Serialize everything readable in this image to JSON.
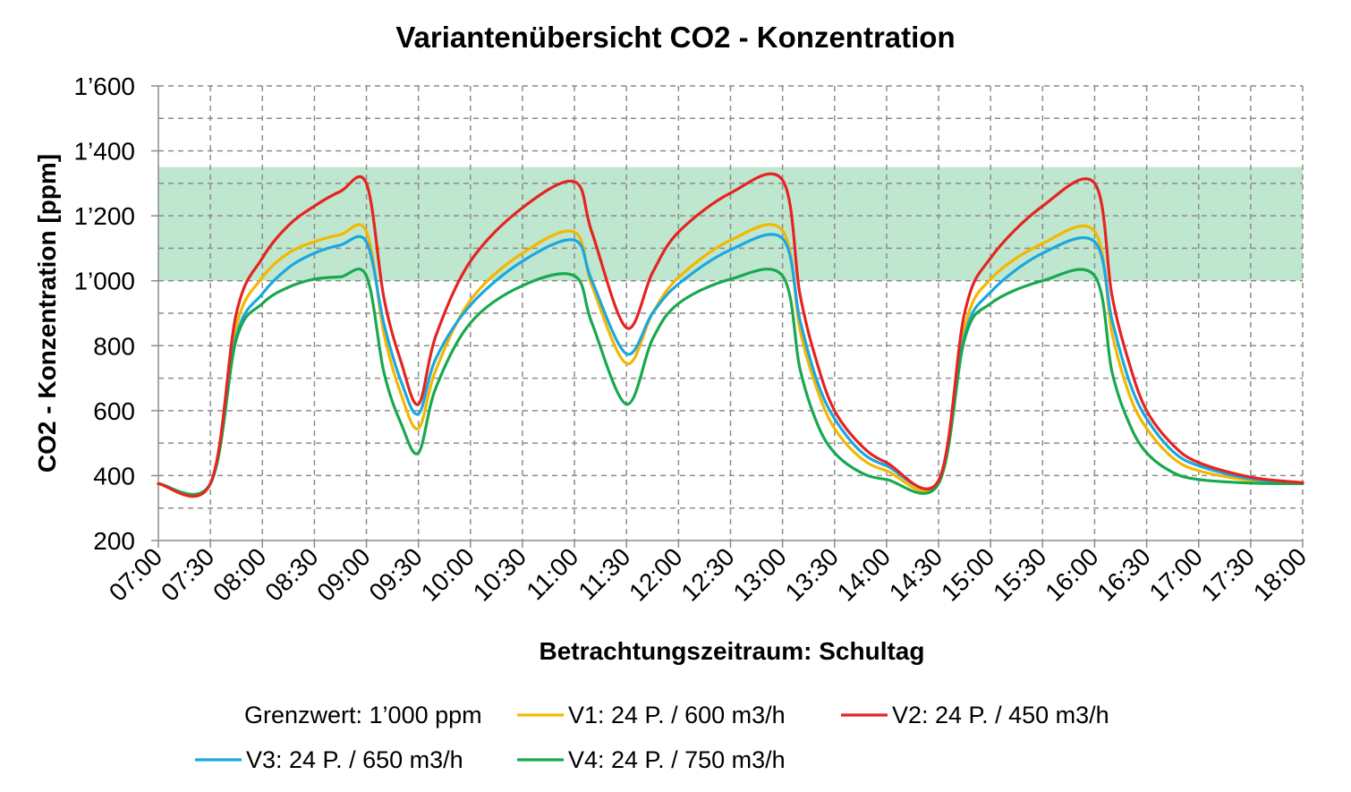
{
  "chart_data": {
    "type": "line",
    "title": "Variantenübersicht CO2 - Konzentration",
    "xlabel": "Betrachtungszeitraum: Schultag",
    "ylabel": "CO2 - Konzentration [ppm]",
    "ylim": [
      200,
      1600
    ],
    "y_ticks": [
      200,
      400,
      600,
      800,
      1000,
      1200,
      1400,
      1600
    ],
    "y_tick_labels": [
      "200",
      "400",
      "600",
      "800",
      "1’000",
      "1’200",
      "1’400",
      "1’600"
    ],
    "x_range": [
      "07:00",
      "18:00"
    ],
    "x_tick_labels": [
      "07:00",
      "07:30",
      "08:00",
      "08:30",
      "09:00",
      "09:30",
      "10:00",
      "10:30",
      "11:00",
      "11:30",
      "12:00",
      "12:30",
      "13:00",
      "13:30",
      "14:00",
      "14:30",
      "15:00",
      "15:30",
      "16:00",
      "16:30",
      "17:00",
      "17:30",
      "18:00"
    ],
    "grid": true,
    "band": {
      "name": "Grenzwert: 1’000 ppm",
      "from": 1000,
      "to": 1350,
      "color": "#bfe6cf"
    },
    "legend_position": "bottom",
    "series": [
      {
        "name": "V1: 24 P. / 600 m3/h",
        "color": "#f2b800",
        "points": [
          [
            "07:00",
            375
          ],
          [
            "07:30",
            375
          ],
          [
            "07:45",
            860
          ],
          [
            "08:00",
            1010
          ],
          [
            "08:15",
            1085
          ],
          [
            "08:30",
            1120
          ],
          [
            "08:45",
            1142
          ],
          [
            "09:00",
            1152
          ],
          [
            "09:10",
            840
          ],
          [
            "09:20",
            650
          ],
          [
            "09:30",
            545
          ],
          [
            "09:40",
            725
          ],
          [
            "10:00",
            940
          ],
          [
            "10:30",
            1085
          ],
          [
            "11:00",
            1150
          ],
          [
            "11:10",
            985
          ],
          [
            "11:30",
            745
          ],
          [
            "11:45",
            900
          ],
          [
            "12:00",
            1010
          ],
          [
            "12:30",
            1125
          ],
          [
            "13:00",
            1155
          ],
          [
            "13:10",
            850
          ],
          [
            "13:20",
            665
          ],
          [
            "13:30",
            545
          ],
          [
            "13:45",
            455
          ],
          [
            "14:00",
            415
          ],
          [
            "14:30",
            378
          ],
          [
            "14:45",
            855
          ],
          [
            "15:00",
            1005
          ],
          [
            "15:30",
            1115
          ],
          [
            "16:00",
            1152
          ],
          [
            "16:10",
            840
          ],
          [
            "16:20",
            650
          ],
          [
            "16:30",
            545
          ],
          [
            "16:45",
            455
          ],
          [
            "17:00",
            415
          ],
          [
            "17:30",
            385
          ],
          [
            "18:00",
            377
          ]
        ]
      },
      {
        "name": "V2: 24 P. / 450 m3/h",
        "color": "#e52421",
        "points": [
          [
            "07:00",
            375
          ],
          [
            "07:30",
            375
          ],
          [
            "07:45",
            900
          ],
          [
            "08:00",
            1070
          ],
          [
            "08:15",
            1170
          ],
          [
            "08:30",
            1230
          ],
          [
            "08:45",
            1275
          ],
          [
            "09:00",
            1300
          ],
          [
            "09:10",
            950
          ],
          [
            "09:20",
            750
          ],
          [
            "09:30",
            620
          ],
          [
            "09:40",
            830
          ],
          [
            "10:00",
            1060
          ],
          [
            "10:30",
            1225
          ],
          [
            "11:00",
            1305
          ],
          [
            "11:10",
            1150
          ],
          [
            "11:30",
            855
          ],
          [
            "11:45",
            1025
          ],
          [
            "12:00",
            1150
          ],
          [
            "12:30",
            1270
          ],
          [
            "13:00",
            1310
          ],
          [
            "13:10",
            960
          ],
          [
            "13:20",
            745
          ],
          [
            "13:30",
            600
          ],
          [
            "13:45",
            495
          ],
          [
            "14:00",
            440
          ],
          [
            "14:30",
            385
          ],
          [
            "14:45",
            900
          ],
          [
            "15:00",
            1070
          ],
          [
            "15:30",
            1230
          ],
          [
            "16:00",
            1300
          ],
          [
            "16:10",
            955
          ],
          [
            "16:20",
            745
          ],
          [
            "16:30",
            600
          ],
          [
            "16:45",
            495
          ],
          [
            "17:00",
            440
          ],
          [
            "17:30",
            395
          ],
          [
            "18:00",
            378
          ]
        ]
      },
      {
        "name": "V3: 24 P. / 650 m3/h",
        "color": "#1ba7e0",
        "points": [
          [
            "07:00",
            375
          ],
          [
            "07:30",
            375
          ],
          [
            "07:45",
            830
          ],
          [
            "08:00",
            960
          ],
          [
            "08:15",
            1040
          ],
          [
            "08:30",
            1085
          ],
          [
            "08:45",
            1110
          ],
          [
            "09:00",
            1120
          ],
          [
            "09:10",
            870
          ],
          [
            "09:20",
            690
          ],
          [
            "09:30",
            590
          ],
          [
            "09:40",
            760
          ],
          [
            "10:00",
            925
          ],
          [
            "10:30",
            1060
          ],
          [
            "11:00",
            1125
          ],
          [
            "11:10",
            1000
          ],
          [
            "11:30",
            775
          ],
          [
            "11:45",
            900
          ],
          [
            "12:00",
            990
          ],
          [
            "12:30",
            1095
          ],
          [
            "13:00",
            1130
          ],
          [
            "13:10",
            880
          ],
          [
            "13:20",
            690
          ],
          [
            "13:30",
            575
          ],
          [
            "13:45",
            475
          ],
          [
            "14:00",
            430
          ],
          [
            "14:30",
            382
          ],
          [
            "14:45",
            830
          ],
          [
            "15:00",
            965
          ],
          [
            "15:30",
            1085
          ],
          [
            "16:00",
            1120
          ],
          [
            "16:10",
            880
          ],
          [
            "16:20",
            690
          ],
          [
            "16:30",
            575
          ],
          [
            "16:45",
            475
          ],
          [
            "17:00",
            430
          ],
          [
            "17:30",
            390
          ],
          [
            "18:00",
            378
          ]
        ]
      },
      {
        "name": "V4: 24 P. / 750 m3/h",
        "color": "#18a84f",
        "points": [
          [
            "07:00",
            375
          ],
          [
            "07:30",
            375
          ],
          [
            "07:45",
            820
          ],
          [
            "08:00",
            930
          ],
          [
            "08:15",
            980
          ],
          [
            "08:30",
            1005
          ],
          [
            "08:45",
            1012
          ],
          [
            "09:00",
            1015
          ],
          [
            "09:10",
            720
          ],
          [
            "09:20",
            560
          ],
          [
            "09:30",
            470
          ],
          [
            "09:40",
            670
          ],
          [
            "10:00",
            870
          ],
          [
            "10:30",
            985
          ],
          [
            "11:00",
            1015
          ],
          [
            "11:10",
            870
          ],
          [
            "11:30",
            620
          ],
          [
            "11:45",
            820
          ],
          [
            "12:00",
            930
          ],
          [
            "12:30",
            1005
          ],
          [
            "13:00",
            1015
          ],
          [
            "13:10",
            730
          ],
          [
            "13:20",
            560
          ],
          [
            "13:30",
            470
          ],
          [
            "13:45",
            410
          ],
          [
            "14:00",
            388
          ],
          [
            "14:30",
            375
          ],
          [
            "14:45",
            820
          ],
          [
            "15:00",
            930
          ],
          [
            "15:30",
            1000
          ],
          [
            "16:00",
            1015
          ],
          [
            "16:10",
            720
          ],
          [
            "16:20",
            560
          ],
          [
            "16:30",
            470
          ],
          [
            "16:45",
            410
          ],
          [
            "17:00",
            388
          ],
          [
            "17:30",
            377
          ],
          [
            "18:00",
            375
          ]
        ]
      }
    ]
  }
}
